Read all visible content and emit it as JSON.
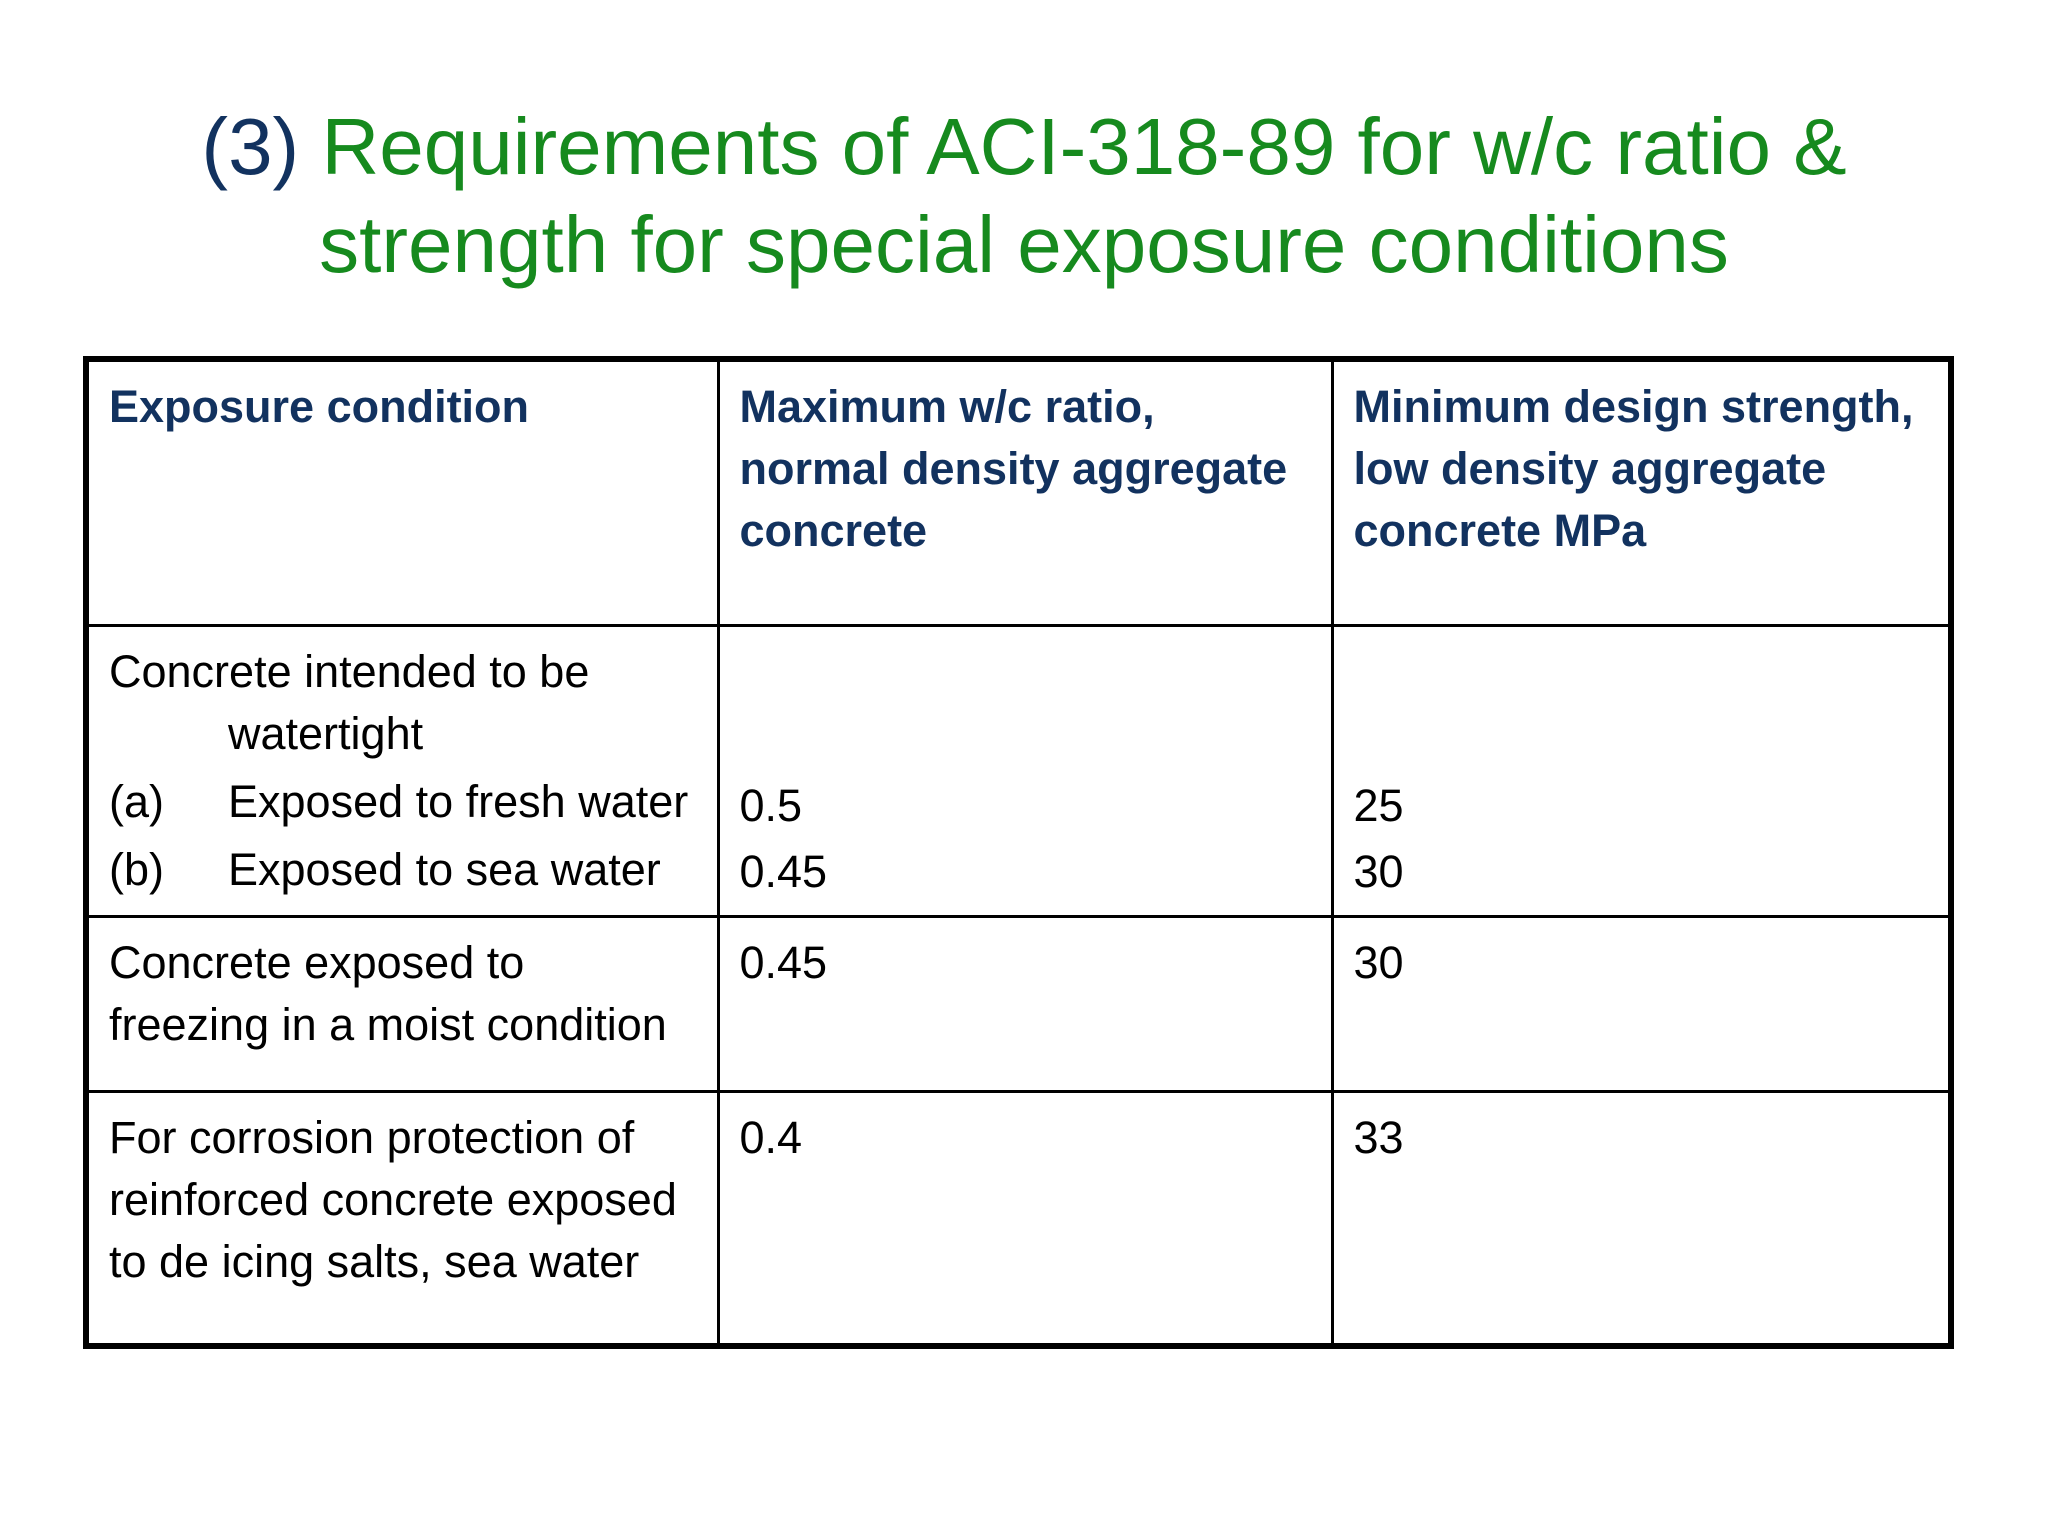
{
  "title": {
    "number": "(3)",
    "line1": "Requirements of ACI-318-89 for w/c ratio &",
    "line2": "strength for special exposure conditions"
  },
  "table": {
    "headers": [
      "Exposure condition",
      "Maximum w/c ratio, normal density aggregate concrete",
      "Minimum design strength, low density aggregate concrete MPa"
    ],
    "rows": [
      {
        "condition_head": "Concrete intended to be",
        "condition_head_cont": "watertight",
        "sub_items": [
          {
            "tag": "(a)",
            "text": "Exposed to fresh water",
            "wc": "0.5",
            "strength": "25"
          },
          {
            "tag": "(b)",
            "text": "Exposed to sea water",
            "wc": "0.45",
            "strength": "30"
          }
        ]
      },
      {
        "condition": "Concrete exposed to freezing in a moist condition",
        "wc": "0.45",
        "strength": "30"
      },
      {
        "condition": "For corrosion protection of reinforced concrete exposed to de icing salts, sea water",
        "wc": "0.4",
        "strength": "33"
      }
    ]
  }
}
